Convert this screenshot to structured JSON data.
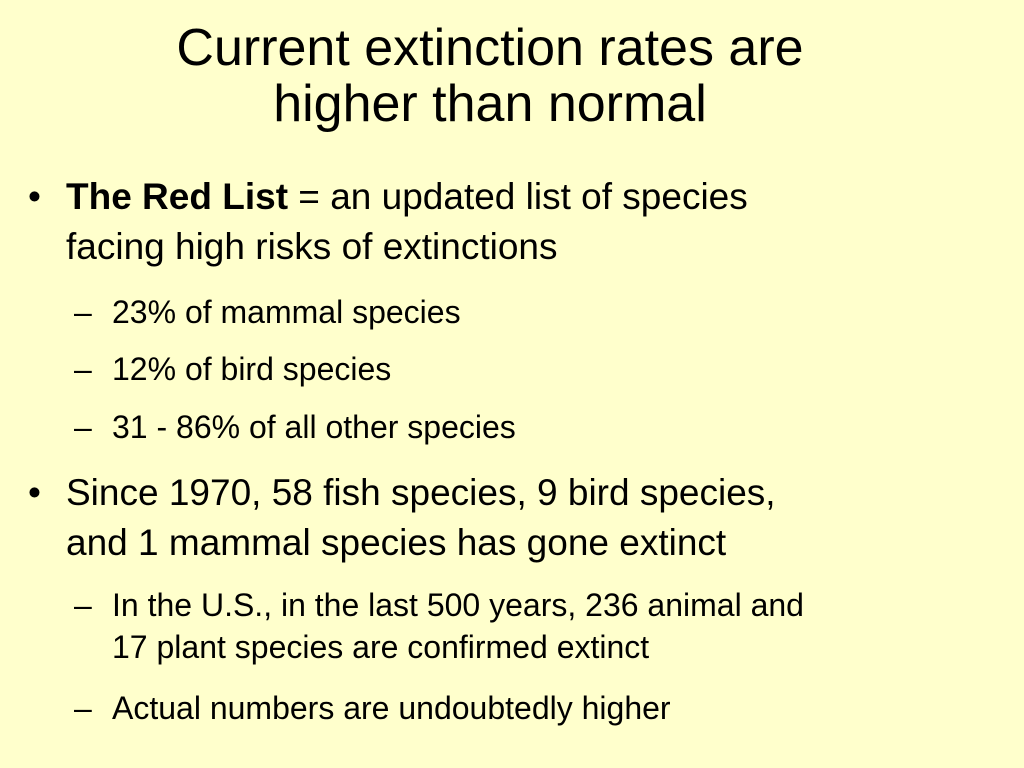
{
  "slide": {
    "title_line1": "Current extinction rates are",
    "title_line2": "higher than normal",
    "bullets": [
      {
        "marker": "•",
        "bold_term": "The Red List",
        "text_line1": " = an updated list of species",
        "text_line2": "facing high risks of extinctions",
        "subitems": [
          {
            "marker": "–",
            "text": "23% of mammal species"
          },
          {
            "marker": "–",
            "text": "12% of bird species"
          },
          {
            "marker": "–",
            "text": "31 - 86% of all other species"
          }
        ]
      },
      {
        "marker": "•",
        "text_line1": "Since 1970, 58 fish species, 9 bird species,",
        "text_line2": "and 1 mammal species has gone extinct",
        "subitems": [
          {
            "marker": "–",
            "text_line1": "In the U.S., in the last 500 years, 236 animal and",
            "text_line2": "17 plant species are confirmed extinct"
          },
          {
            "marker": "–",
            "text": "Actual numbers are undoubtedly higher"
          }
        ]
      }
    ]
  },
  "colors": {
    "background": "#ffffcc",
    "text": "#000000"
  }
}
